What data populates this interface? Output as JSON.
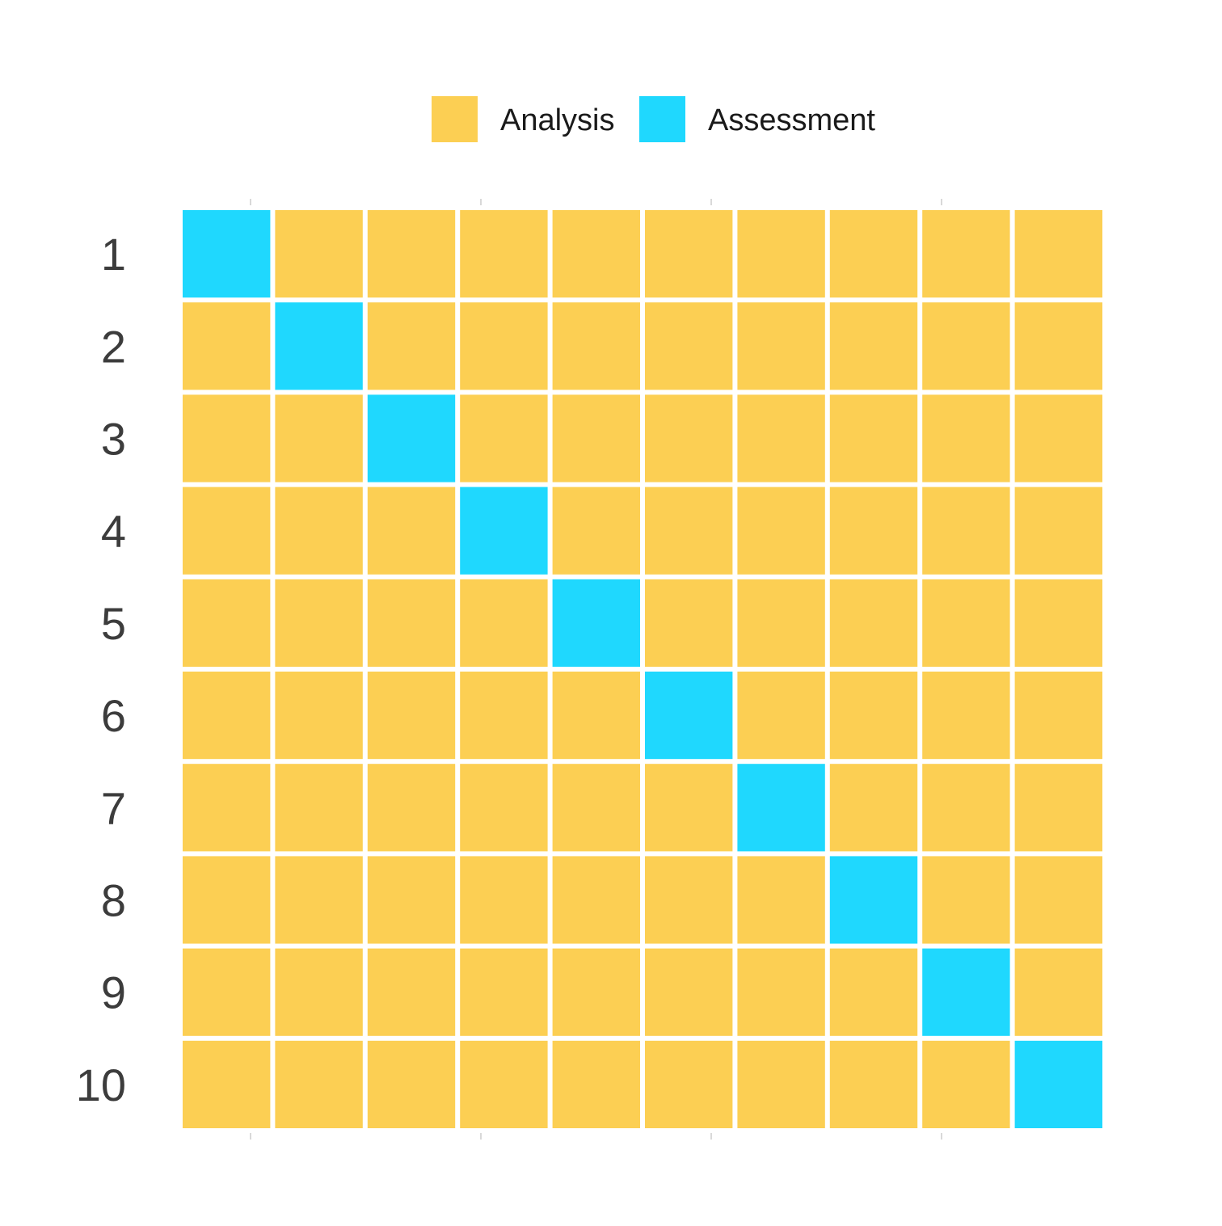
{
  "chart_data": {
    "type": "heatmap",
    "rows": [
      "1",
      "2",
      "3",
      "4",
      "5",
      "6",
      "7",
      "8",
      "9",
      "10"
    ],
    "columns": 10,
    "legend": {
      "position": "top",
      "items": [
        {
          "key": "analysis",
          "label": "Analysis",
          "color": "#fccf53"
        },
        {
          "key": "assessment",
          "label": "Assessment",
          "color": "#1fd8fe"
        }
      ]
    },
    "cells": [
      [
        "assessment",
        "analysis",
        "analysis",
        "analysis",
        "analysis",
        "analysis",
        "analysis",
        "analysis",
        "analysis",
        "analysis"
      ],
      [
        "analysis",
        "assessment",
        "analysis",
        "analysis",
        "analysis",
        "analysis",
        "analysis",
        "analysis",
        "analysis",
        "analysis"
      ],
      [
        "analysis",
        "analysis",
        "assessment",
        "analysis",
        "analysis",
        "analysis",
        "analysis",
        "analysis",
        "analysis",
        "analysis"
      ],
      [
        "analysis",
        "analysis",
        "analysis",
        "assessment",
        "analysis",
        "analysis",
        "analysis",
        "analysis",
        "analysis",
        "analysis"
      ],
      [
        "analysis",
        "analysis",
        "analysis",
        "analysis",
        "assessment",
        "analysis",
        "analysis",
        "analysis",
        "analysis",
        "analysis"
      ],
      [
        "analysis",
        "analysis",
        "analysis",
        "analysis",
        "analysis",
        "assessment",
        "analysis",
        "analysis",
        "analysis",
        "analysis"
      ],
      [
        "analysis",
        "analysis",
        "analysis",
        "analysis",
        "analysis",
        "analysis",
        "assessment",
        "analysis",
        "analysis",
        "analysis"
      ],
      [
        "analysis",
        "analysis",
        "analysis",
        "analysis",
        "analysis",
        "analysis",
        "analysis",
        "assessment",
        "analysis",
        "analysis"
      ],
      [
        "analysis",
        "analysis",
        "analysis",
        "analysis",
        "analysis",
        "analysis",
        "analysis",
        "analysis",
        "assessment",
        "analysis"
      ],
      [
        "analysis",
        "analysis",
        "analysis",
        "analysis",
        "analysis",
        "analysis",
        "analysis",
        "analysis",
        "analysis",
        "assessment"
      ]
    ],
    "x_ticks_unlabeled": 4,
    "grid": false,
    "label_color": "#3c3c3c",
    "tick_color": "#cccccc"
  }
}
